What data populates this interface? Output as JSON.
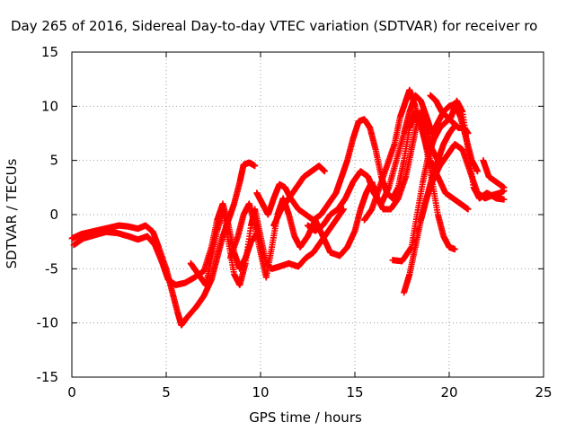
{
  "chart_data": {
    "type": "scatter",
    "title": "Day 265 of 2016, Sidereal Day-to-day VTEC variation (SDTVAR) for receiver ro",
    "xlabel": "GPS time / hours",
    "ylabel": "SDTVAR / TECUs",
    "xlim": [
      0,
      25
    ],
    "ylim": [
      -15,
      15
    ],
    "xticks": [
      0,
      5,
      10,
      15,
      20,
      25
    ],
    "yticks": [
      -15,
      -10,
      -5,
      0,
      5,
      10,
      15
    ],
    "xtick_labels": [
      "0",
      "5",
      "10",
      "15",
      "20",
      "25"
    ],
    "ytick_labels": [
      "-15",
      "-10",
      "-5",
      "0",
      "5",
      "10",
      "15"
    ],
    "grid": true,
    "marker": "plus",
    "color": "#ff0000",
    "series": [
      {
        "points": [
          [
            0.0,
            -2.2
          ],
          [
            0.5,
            -1.8
          ],
          [
            1.0,
            -1.6
          ],
          [
            1.5,
            -1.4
          ],
          [
            2.0,
            -1.2
          ],
          [
            2.5,
            -1.0
          ],
          [
            3.0,
            -1.1
          ],
          [
            3.5,
            -1.3
          ],
          [
            3.9,
            -1.0
          ],
          [
            4.3,
            -1.6
          ],
          [
            4.6,
            -3.0
          ],
          [
            5.0,
            -5.0
          ],
          [
            5.3,
            -7.0
          ],
          [
            5.6,
            -9.0
          ],
          [
            5.8,
            -10.2
          ],
          [
            6.1,
            -9.5
          ],
          [
            6.6,
            -8.5
          ],
          [
            7.0,
            -7.5
          ],
          [
            7.4,
            -6.0
          ],
          [
            7.7,
            -4.0
          ],
          [
            8.0,
            -2.0
          ],
          [
            8.3,
            -0.5
          ],
          [
            8.6,
            1.0
          ],
          [
            8.9,
            3.0
          ],
          [
            9.1,
            4.6
          ],
          [
            9.4,
            4.8
          ],
          [
            9.7,
            4.5
          ]
        ]
      },
      {
        "points": [
          [
            0.1,
            -2.8
          ],
          [
            0.6,
            -2.2
          ],
          [
            1.2,
            -1.9
          ],
          [
            1.8,
            -1.6
          ],
          [
            2.4,
            -1.7
          ],
          [
            3.0,
            -2.0
          ],
          [
            3.5,
            -2.3
          ],
          [
            4.0,
            -2.0
          ],
          [
            4.4,
            -2.8
          ],
          [
            4.8,
            -4.5
          ],
          [
            5.1,
            -6.0
          ],
          [
            5.5,
            -6.5
          ],
          [
            6.0,
            -6.3
          ],
          [
            6.5,
            -5.8
          ],
          [
            7.0,
            -5.2
          ],
          [
            7.4,
            -3.0
          ],
          [
            7.7,
            -0.5
          ],
          [
            8.0,
            1.0
          ],
          [
            8.3,
            -1.0
          ],
          [
            8.6,
            -3.5
          ],
          [
            8.9,
            -5.0
          ],
          [
            9.2,
            -4.0
          ],
          [
            9.5,
            -2.5
          ],
          [
            9.8,
            -1.8
          ]
        ]
      },
      {
        "points": [
          [
            6.3,
            -4.5
          ],
          [
            6.7,
            -5.5
          ],
          [
            7.1,
            -6.5
          ],
          [
            7.4,
            -4.0
          ],
          [
            7.7,
            -1.5
          ],
          [
            8.0,
            0.5
          ],
          [
            8.3,
            -2.5
          ],
          [
            8.6,
            -5.5
          ],
          [
            8.9,
            -6.5
          ],
          [
            9.2,
            -4.5
          ],
          [
            9.5,
            -1.0
          ],
          [
            9.7,
            0.5
          ],
          [
            10.0,
            -2.0
          ],
          [
            10.3,
            -4.5
          ],
          [
            10.6,
            -5.0
          ],
          [
            11.0,
            -4.8
          ],
          [
            11.5,
            -4.5
          ],
          [
            12.0,
            -4.8
          ],
          [
            12.4,
            -4.0
          ],
          [
            12.8,
            -3.5
          ],
          [
            13.2,
            -2.5
          ],
          [
            13.6,
            -1.5
          ],
          [
            14.0,
            -0.5
          ],
          [
            14.4,
            0.5
          ]
        ]
      },
      {
        "points": [
          [
            8.4,
            -4.0
          ],
          [
            8.8,
            -2.0
          ],
          [
            9.1,
            0.0
          ],
          [
            9.4,
            1.0
          ],
          [
            9.7,
            -1.0
          ],
          [
            10.0,
            -3.5
          ],
          [
            10.3,
            -5.8
          ],
          [
            10.6,
            -3.0
          ],
          [
            10.9,
            0.0
          ],
          [
            11.2,
            1.5
          ],
          [
            11.5,
            0.0
          ],
          [
            11.8,
            -2.0
          ],
          [
            12.1,
            -3.0
          ],
          [
            12.5,
            -2.0
          ],
          [
            12.9,
            -0.5
          ],
          [
            13.3,
            -2.0
          ],
          [
            13.7,
            -3.5
          ],
          [
            14.2,
            -3.8
          ],
          [
            14.6,
            -3.0
          ],
          [
            15.0,
            -1.5
          ],
          [
            15.3,
            0.5
          ],
          [
            15.6,
            2.0
          ],
          [
            15.9,
            3.0
          ],
          [
            16.2,
            1.5
          ],
          [
            16.5,
            0.5
          ],
          [
            16.9,
            0.5
          ],
          [
            17.3,
            1.5
          ],
          [
            17.7,
            3.5
          ],
          [
            18.0,
            6.0
          ],
          [
            18.3,
            8.5
          ],
          [
            18.5,
            9.5
          ],
          [
            18.8,
            8.0
          ],
          [
            19.1,
            6.0
          ],
          [
            19.4,
            5.0
          ],
          [
            19.7,
            5.0
          ]
        ]
      },
      {
        "points": [
          [
            9.8,
            2.0
          ],
          [
            10.1,
            1.0
          ],
          [
            10.4,
            0.0
          ],
          [
            10.7,
            1.5
          ],
          [
            11.0,
            2.8
          ],
          [
            11.3,
            2.5
          ],
          [
            11.6,
            1.5
          ],
          [
            12.0,
            0.5
          ],
          [
            12.4,
            0.0
          ],
          [
            12.8,
            -0.5
          ],
          [
            13.2,
            0.0
          ],
          [
            13.6,
            1.0
          ],
          [
            14.0,
            2.0
          ],
          [
            14.3,
            3.5
          ],
          [
            14.6,
            5.0
          ],
          [
            14.9,
            7.0
          ],
          [
            15.2,
            8.6
          ],
          [
            15.5,
            8.8
          ],
          [
            15.8,
            8.0
          ],
          [
            16.1,
            6.0
          ],
          [
            16.4,
            3.5
          ],
          [
            16.7,
            2.0
          ],
          [
            17.0,
            1.5
          ],
          [
            17.3,
            2.5
          ],
          [
            17.6,
            5.0
          ],
          [
            17.9,
            8.0
          ],
          [
            18.2,
            9.5
          ],
          [
            18.5,
            8.5
          ],
          [
            18.8,
            6.0
          ],
          [
            19.1,
            3.0
          ],
          [
            19.4,
            0.0
          ],
          [
            19.7,
            -2.0
          ],
          [
            20.0,
            -3.0
          ],
          [
            20.3,
            -3.2
          ]
        ]
      },
      {
        "points": [
          [
            10.7,
            -1.0
          ],
          [
            11.1,
            0.5
          ],
          [
            11.5,
            1.5
          ],
          [
            11.9,
            2.5
          ],
          [
            12.3,
            3.5
          ],
          [
            12.7,
            4.0
          ],
          [
            13.1,
            4.5
          ],
          [
            13.4,
            4.0
          ]
        ]
      },
      {
        "points": [
          [
            12.5,
            -1.0
          ],
          [
            12.9,
            -1.5
          ],
          [
            13.3,
            -1.0
          ],
          [
            13.7,
            0.0
          ],
          [
            14.1,
            0.5
          ],
          [
            14.5,
            1.5
          ],
          [
            14.9,
            3.0
          ],
          [
            15.3,
            4.0
          ],
          [
            15.7,
            3.5
          ],
          [
            16.0,
            2.0
          ],
          [
            16.4,
            1.0
          ],
          [
            16.8,
            2.5
          ],
          [
            17.2,
            5.0
          ],
          [
            17.6,
            7.5
          ],
          [
            17.9,
            9.5
          ],
          [
            18.2,
            11.0
          ],
          [
            18.5,
            10.5
          ],
          [
            18.8,
            9.0
          ],
          [
            19.1,
            7.5
          ],
          [
            19.4,
            8.5
          ],
          [
            19.7,
            9.5
          ],
          [
            20.0,
            10.0
          ],
          [
            20.3,
            10.2
          ],
          [
            20.6,
            9.0
          ],
          [
            20.9,
            7.0
          ],
          [
            21.2,
            5.0
          ],
          [
            21.5,
            4.0
          ]
        ]
      },
      {
        "points": [
          [
            15.5,
            -0.5
          ],
          [
            15.9,
            0.5
          ],
          [
            16.3,
            2.5
          ],
          [
            16.7,
            4.5
          ],
          [
            17.1,
            6.5
          ],
          [
            17.4,
            9.0
          ],
          [
            17.7,
            10.5
          ],
          [
            17.9,
            11.5
          ],
          [
            18.2,
            10.0
          ],
          [
            18.6,
            7.5
          ],
          [
            19.0,
            5.0
          ],
          [
            19.4,
            3.5
          ],
          [
            19.8,
            2.0
          ],
          [
            20.2,
            1.5
          ],
          [
            20.6,
            1.0
          ],
          [
            21.0,
            0.5
          ]
        ]
      },
      {
        "points": [
          [
            17.0,
            -4.2
          ],
          [
            17.5,
            -4.3
          ],
          [
            18.0,
            -3.0
          ],
          [
            18.3,
            0.0
          ],
          [
            18.6,
            3.0
          ],
          [
            18.9,
            5.5
          ],
          [
            19.2,
            7.0
          ],
          [
            19.5,
            8.0
          ],
          [
            19.8,
            8.5
          ],
          [
            20.1,
            9.0
          ],
          [
            20.4,
            10.5
          ],
          [
            20.7,
            9.5
          ],
          [
            21.0,
            6.0
          ],
          [
            21.3,
            2.5
          ],
          [
            21.6,
            1.5
          ],
          [
            22.0,
            2.0
          ],
          [
            22.5,
            1.5
          ],
          [
            22.9,
            1.4
          ]
        ]
      },
      {
        "points": [
          [
            17.6,
            -7.2
          ],
          [
            17.9,
            -5.5
          ],
          [
            18.2,
            -3.0
          ],
          [
            18.5,
            -0.5
          ],
          [
            18.8,
            1.5
          ],
          [
            19.1,
            3.5
          ],
          [
            19.4,
            5.0
          ],
          [
            19.7,
            6.5
          ],
          [
            20.0,
            7.5
          ],
          [
            20.3,
            8.2
          ]
        ]
      },
      {
        "points": [
          [
            18.5,
            -0.5
          ],
          [
            18.8,
            1.5
          ],
          [
            19.1,
            3.0
          ],
          [
            19.5,
            4.5
          ],
          [
            19.9,
            5.5
          ],
          [
            20.3,
            6.5
          ],
          [
            20.7,
            6.0
          ],
          [
            21.1,
            4.0
          ],
          [
            21.5,
            2.0
          ],
          [
            21.9,
            1.5
          ],
          [
            22.3,
            1.8
          ],
          [
            22.7,
            2.0
          ],
          [
            22.9,
            2.2
          ]
        ]
      },
      {
        "points": [
          [
            19.0,
            11.0
          ],
          [
            19.3,
            10.5
          ],
          [
            19.6,
            9.5
          ],
          [
            19.9,
            9.0
          ],
          [
            20.2,
            8.5
          ],
          [
            20.5,
            8.0
          ],
          [
            20.8,
            8.0
          ],
          [
            21.0,
            7.5
          ]
        ]
      },
      {
        "points": [
          [
            21.8,
            5.0
          ],
          [
            22.1,
            3.5
          ],
          [
            22.5,
            3.0
          ],
          [
            22.9,
            2.5
          ]
        ]
      }
    ]
  }
}
